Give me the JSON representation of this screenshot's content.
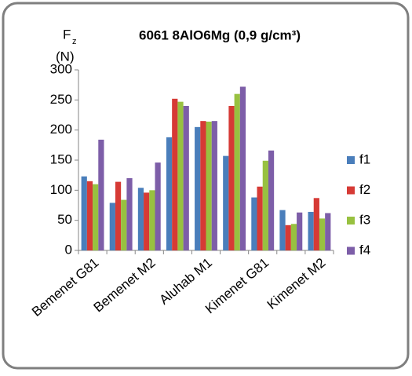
{
  "chart_data": {
    "type": "bar",
    "title": "6061 8AlO6Mg (0,9 g/cm³)",
    "ylabel": "F",
    "ylabel_subscript": "z",
    "ylabel_unit": "(N)",
    "categories": [
      "Bemenet G81",
      null,
      "Bemenet M2",
      null,
      "Aluhab M1",
      null,
      "Kimenet G81",
      null,
      "Kimenet M2"
    ],
    "series": [
      {
        "name": "f1",
        "color": "#4a7ebb",
        "values": [
          123,
          79,
          104,
          188,
          205,
          157,
          88,
          67,
          64
        ]
      },
      {
        "name": "f2",
        "color": "#d63a35",
        "values": [
          115,
          114,
          96,
          252,
          215,
          240,
          106,
          42,
          87
        ]
      },
      {
        "name": "f3",
        "color": "#98c140",
        "values": [
          110,
          84,
          100,
          247,
          214,
          260,
          149,
          44,
          53
        ]
      },
      {
        "name": "f4",
        "color": "#7d5ea8",
        "values": [
          184,
          120,
          146,
          240,
          215,
          272,
          166,
          63,
          62
        ]
      }
    ],
    "ylim": [
      0,
      300
    ],
    "yticks": [
      0,
      50,
      100,
      150,
      200,
      250,
      300
    ],
    "grid": false,
    "legend": "right"
  }
}
